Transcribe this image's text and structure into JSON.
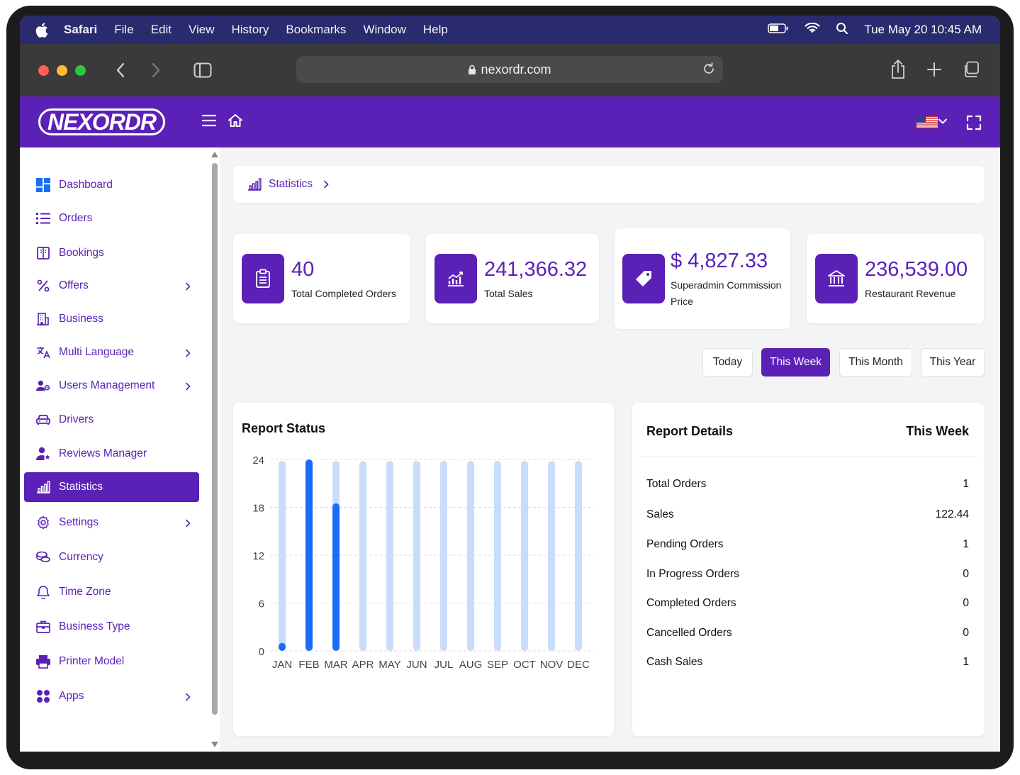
{
  "menubar": {
    "app": "Safari",
    "items": [
      "File",
      "Edit",
      "View",
      "History",
      "Bookmarks",
      "Window",
      "Help"
    ],
    "datetime": "Tue May 20  10:45 AM"
  },
  "browser": {
    "url": "nexordr.com"
  },
  "app": {
    "logo": "NEXORDR"
  },
  "sidebar": {
    "items": [
      {
        "label": "Dashboard",
        "icon": "dashboard-icon",
        "chevron": false
      },
      {
        "label": "Orders",
        "icon": "list-icon",
        "chevron": false
      },
      {
        "label": "Bookings",
        "icon": "book-icon",
        "chevron": false
      },
      {
        "label": "Offers",
        "icon": "percent-icon",
        "chevron": true
      },
      {
        "label": "Business",
        "icon": "building-icon",
        "chevron": false
      },
      {
        "label": "Multi Language",
        "icon": "translate-icon",
        "chevron": true
      },
      {
        "label": "Users Management",
        "icon": "users-gear-icon",
        "chevron": true
      },
      {
        "label": "Drivers",
        "icon": "car-icon",
        "chevron": false
      },
      {
        "label": "Reviews Manager",
        "icon": "user-star-icon",
        "chevron": false
      },
      {
        "label": "Statistics",
        "icon": "bar-chart-icon",
        "chevron": false,
        "active": true
      },
      {
        "label": "Settings",
        "icon": "gear-icon",
        "chevron": true
      },
      {
        "label": "Currency",
        "icon": "coins-icon",
        "chevron": false
      },
      {
        "label": "Time Zone",
        "icon": "bell-icon",
        "chevron": false
      },
      {
        "label": "Business Type",
        "icon": "briefcase-icon",
        "chevron": false
      },
      {
        "label": "Printer Model",
        "icon": "printer-icon",
        "chevron": false
      },
      {
        "label": "Apps",
        "icon": "apps-grid-icon",
        "chevron": true
      }
    ]
  },
  "breadcrumb": {
    "label": "Statistics"
  },
  "stats": [
    {
      "value": "40",
      "label": "Total Completed Orders",
      "icon": "clipboard-icon"
    },
    {
      "value": "241,366.32",
      "label": "Total Sales",
      "icon": "trend-chart-icon"
    },
    {
      "value": "$ 4,827.33",
      "label": "Superadmin Commission Price",
      "label_line1": "Superadmin Commission",
      "label_line2": "Price",
      "icon": "tag-icon"
    },
    {
      "value": "236,539.00",
      "label": "Restaurant Revenue",
      "icon": "bank-icon"
    }
  ],
  "ranges": {
    "today": "Today",
    "week": "This Week",
    "month": "This Month",
    "year": "This Year",
    "selected": "This Week"
  },
  "report_status": {
    "title": "Report Status"
  },
  "chart_data": {
    "type": "bar",
    "title": "Report Status",
    "categories": [
      "JAN",
      "FEB",
      "MAR",
      "APR",
      "MAY",
      "JUN",
      "JUL",
      "AUG",
      "SEP",
      "OCT",
      "NOV",
      "DEC"
    ],
    "values": [
      1,
      24,
      18.5,
      0,
      0,
      0,
      0,
      0,
      0,
      0,
      0,
      0
    ],
    "ylim": [
      0,
      24
    ],
    "yticks": [
      0,
      6,
      12,
      18,
      24
    ],
    "grid": true,
    "bar_color": "#1a6ef5",
    "track_color": "#c9dcfb"
  },
  "report_details": {
    "title": "Report Details",
    "period": "This Week",
    "rows": [
      {
        "label": "Total Orders",
        "value": "1"
      },
      {
        "label": "Sales",
        "value": "122.44"
      },
      {
        "label": "Pending Orders",
        "value": "1"
      },
      {
        "label": "In Progress Orders",
        "value": "0"
      },
      {
        "label": "Completed Orders",
        "value": "0"
      },
      {
        "label": "Cancelled Orders",
        "value": "0"
      },
      {
        "label": "Cash Sales",
        "value": "1"
      }
    ]
  },
  "colors": {
    "brand": "#5b21b6",
    "menubar": "#2a2a6e",
    "bar": "#1a6ef5"
  }
}
